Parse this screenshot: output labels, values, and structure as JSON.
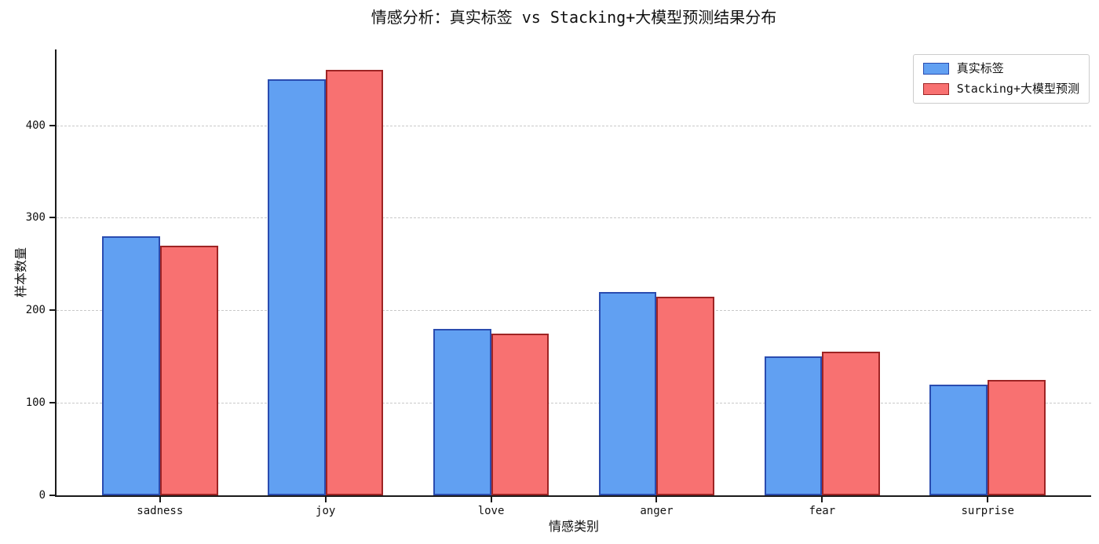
{
  "chart_data": {
    "type": "bar",
    "title": "情感分析：真实标签 vs Stacking+大模型预测结果分布",
    "xlabel": "情感类别",
    "ylabel": "样本数量",
    "categories": [
      "sadness",
      "joy",
      "love",
      "anger",
      "fear",
      "surprise"
    ],
    "series": [
      {
        "name": "真实标签",
        "key": "actual",
        "fill": "#61A0F2",
        "edge": "#2A4CB0",
        "values": [
          280,
          450,
          180,
          220,
          150,
          120
        ]
      },
      {
        "name": "Stacking+大模型预测",
        "key": "predicted",
        "fill": "#F87171",
        "edge": "#9E2424",
        "values": [
          270,
          460,
          175,
          215,
          155,
          125
        ]
      }
    ],
    "yticks": [
      0,
      100,
      200,
      300,
      400
    ],
    "ylim": [
      0,
      482
    ],
    "bar_width_units": 0.35,
    "grid": "horizontal-dashed",
    "grid_color": "#c9c9c9",
    "spine_color": "#1a1a1a",
    "background_color": "#ffffff",
    "legend_position": "upper-right"
  }
}
